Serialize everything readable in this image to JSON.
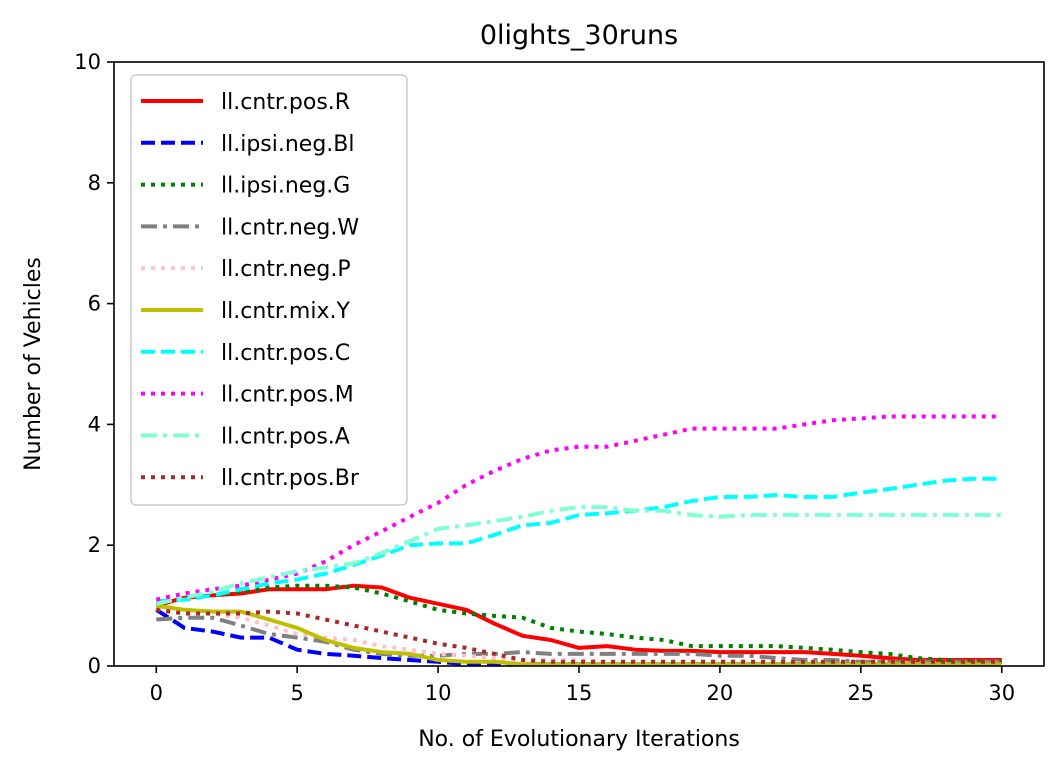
{
  "chart_data": {
    "type": "line",
    "title": "0lights_30runs",
    "xlabel": "No. of Evolutionary Iterations",
    "ylabel": "Number of Vehicles",
    "xlim": [
      -1.5,
      31.5
    ],
    "ylim": [
      0,
      10
    ],
    "xticks": [
      0,
      5,
      10,
      15,
      20,
      25,
      30
    ],
    "yticks": [
      0,
      2,
      4,
      6,
      8,
      10
    ],
    "grid": false,
    "legend_position": "upper-left",
    "x": [
      0,
      1,
      2,
      3,
      4,
      5,
      6,
      7,
      8,
      9,
      10,
      11,
      12,
      13,
      14,
      15,
      16,
      17,
      18,
      19,
      20,
      21,
      22,
      23,
      24,
      25,
      26,
      27,
      28,
      29,
      30
    ],
    "series": [
      {
        "name": "ll.cntr.pos.R",
        "color": "#ff0000",
        "dash": "solid",
        "values": [
          1.0,
          1.13,
          1.17,
          1.2,
          1.27,
          1.27,
          1.27,
          1.33,
          1.3,
          1.13,
          1.03,
          0.93,
          0.7,
          0.5,
          0.43,
          0.3,
          0.33,
          0.27,
          0.25,
          0.25,
          0.23,
          0.23,
          0.23,
          0.23,
          0.2,
          0.17,
          0.13,
          0.1,
          0.1,
          0.1,
          0.1
        ]
      },
      {
        "name": "ll.ipsi.neg.Bl",
        "color": "#0000ff",
        "dash": "dashed",
        "values": [
          0.93,
          0.63,
          0.57,
          0.47,
          0.47,
          0.27,
          0.2,
          0.17,
          0.13,
          0.1,
          0.07,
          0.03,
          0.03,
          0.03,
          0.03,
          0.03,
          0.03,
          0.03,
          0.03,
          0.03,
          0.03,
          0.03,
          0.03,
          0.03,
          0.03,
          0.03,
          0.03,
          0.03,
          0.03,
          0.03,
          0.03
        ]
      },
      {
        "name": "ll.ipsi.neg.G",
        "color": "#008000",
        "dash": "dotted",
        "values": [
          1.07,
          1.1,
          1.17,
          1.23,
          1.3,
          1.33,
          1.33,
          1.3,
          1.2,
          1.07,
          0.93,
          0.87,
          0.83,
          0.8,
          0.63,
          0.57,
          0.53,
          0.47,
          0.43,
          0.33,
          0.33,
          0.33,
          0.33,
          0.3,
          0.27,
          0.23,
          0.2,
          0.13,
          0.1,
          0.07,
          0.07
        ]
      },
      {
        "name": "ll.cntr.neg.W",
        "color": "#808080",
        "dash": "dashdot",
        "values": [
          0.77,
          0.8,
          0.8,
          0.67,
          0.53,
          0.47,
          0.4,
          0.27,
          0.2,
          0.17,
          0.17,
          0.2,
          0.2,
          0.23,
          0.2,
          0.2,
          0.2,
          0.2,
          0.2,
          0.2,
          0.17,
          0.17,
          0.13,
          0.1,
          0.1,
          0.07,
          0.07,
          0.07,
          0.07,
          0.07,
          0.07
        ]
      },
      {
        "name": "ll.cntr.neg.P",
        "color": "#ffc0cb",
        "dash": "dotted",
        "values": [
          0.97,
          0.93,
          0.87,
          0.8,
          0.67,
          0.53,
          0.47,
          0.43,
          0.33,
          0.27,
          0.2,
          0.17,
          0.13,
          0.1,
          0.1,
          0.1,
          0.07,
          0.07,
          0.07,
          0.07,
          0.07,
          0.07,
          0.07,
          0.07,
          0.07,
          0.07,
          0.07,
          0.07,
          0.07,
          0.07,
          0.07
        ]
      },
      {
        "name": "ll.cntr.mix.Y",
        "color": "#bfbf00",
        "dash": "solid",
        "values": [
          1.0,
          0.93,
          0.9,
          0.9,
          0.77,
          0.63,
          0.43,
          0.3,
          0.23,
          0.2,
          0.1,
          0.07,
          0.07,
          0.03,
          0.03,
          0.03,
          0.03,
          0.03,
          0.03,
          0.03,
          0.03,
          0.03,
          0.03,
          0.03,
          0.03,
          0.03,
          0.03,
          0.03,
          0.03,
          0.03,
          0.03
        ]
      },
      {
        "name": "ll.cntr.pos.C",
        "color": "#00ffff",
        "dash": "dashed",
        "values": [
          1.07,
          1.1,
          1.17,
          1.27,
          1.37,
          1.43,
          1.53,
          1.67,
          1.83,
          2.0,
          2.03,
          2.03,
          2.17,
          2.33,
          2.37,
          2.5,
          2.53,
          2.57,
          2.63,
          2.73,
          2.8,
          2.8,
          2.83,
          2.8,
          2.8,
          2.87,
          2.93,
          3.0,
          3.07,
          3.1,
          3.1
        ]
      },
      {
        "name": "ll.cntr.pos.M",
        "color": "#ff00ff",
        "dash": "dotted",
        "values": [
          1.1,
          1.2,
          1.27,
          1.33,
          1.43,
          1.53,
          1.73,
          2.0,
          2.23,
          2.47,
          2.7,
          3.0,
          3.23,
          3.43,
          3.57,
          3.63,
          3.63,
          3.73,
          3.83,
          3.93,
          3.93,
          3.93,
          3.93,
          4.0,
          4.07,
          4.1,
          4.13,
          4.13,
          4.13,
          4.13,
          4.13
        ]
      },
      {
        "name": "ll.cntr.pos.A",
        "color": "#7fffd4",
        "dash": "dashdot",
        "values": [
          1.03,
          1.13,
          1.23,
          1.37,
          1.47,
          1.57,
          1.63,
          1.7,
          1.87,
          2.07,
          2.27,
          2.33,
          2.4,
          2.47,
          2.57,
          2.63,
          2.63,
          2.57,
          2.57,
          2.5,
          2.47,
          2.5,
          2.5,
          2.5,
          2.5,
          2.5,
          2.5,
          2.5,
          2.5,
          2.5,
          2.5
        ]
      },
      {
        "name": "ll.cntr.pos.Br",
        "color": "#a52a2a",
        "dash": "dotted",
        "values": [
          0.93,
          0.87,
          0.87,
          0.87,
          0.9,
          0.87,
          0.77,
          0.67,
          0.57,
          0.47,
          0.37,
          0.3,
          0.2,
          0.1,
          0.07,
          0.07,
          0.07,
          0.07,
          0.07,
          0.07,
          0.07,
          0.07,
          0.07,
          0.07,
          0.07,
          0.07,
          0.07,
          0.07,
          0.07,
          0.07,
          0.07
        ]
      }
    ]
  }
}
